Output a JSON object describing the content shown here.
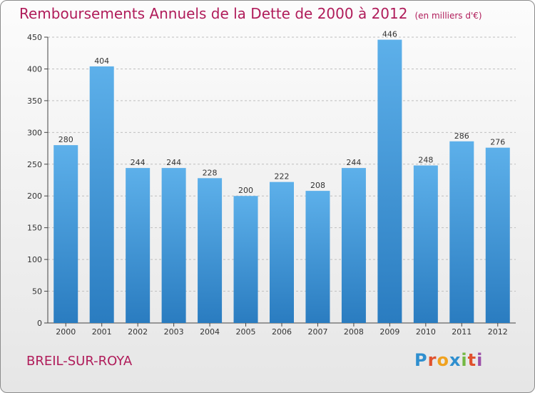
{
  "header": {
    "title": "Remboursements Annuels de la Dette de 2000 à 2012",
    "unit": "(en milliers d'€)"
  },
  "footer": {
    "commune": "BREIL-SUR-ROYA",
    "logo_letters": [
      "P",
      "r",
      "o",
      "x",
      "i",
      "t",
      "i"
    ]
  },
  "colors": {
    "title": "#b01c5a",
    "bar_top": "#5db0ea",
    "bar_bottom": "#2a7cc0",
    "grid": "#bfbfbf",
    "axis": "#444444"
  },
  "chart_data": {
    "type": "bar",
    "title": "Remboursements Annuels de la Dette de 2000 à 2012",
    "xlabel": "",
    "ylabel": "",
    "ylim": [
      0,
      450
    ],
    "yticks": [
      0,
      50,
      100,
      150,
      200,
      250,
      300,
      350,
      400,
      450
    ],
    "grid": true,
    "categories": [
      "2000",
      "2001",
      "2002",
      "2003",
      "2004",
      "2005",
      "2006",
      "2007",
      "2008",
      "2009",
      "2010",
      "2011",
      "2012"
    ],
    "values": [
      280,
      404,
      244,
      244,
      228,
      200,
      222,
      208,
      244,
      446,
      248,
      286,
      276
    ]
  }
}
